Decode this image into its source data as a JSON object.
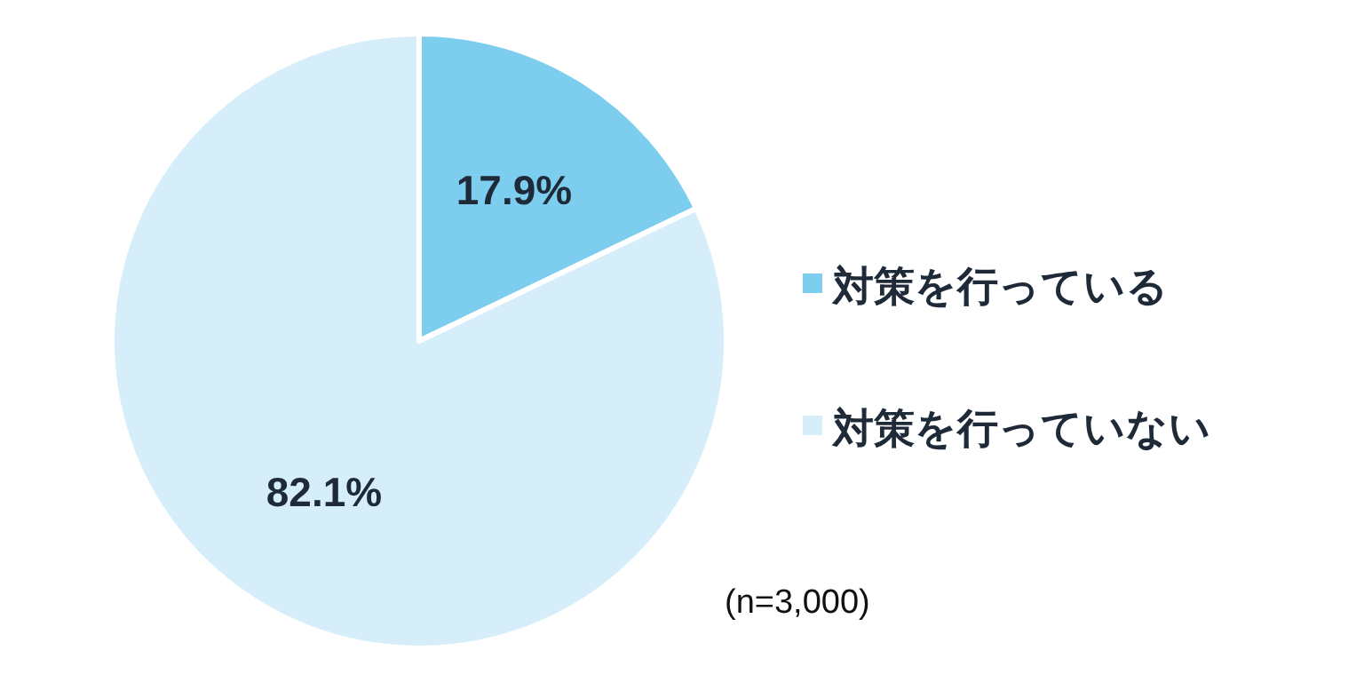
{
  "chart_data": {
    "type": "pie",
    "categories": [
      "対策を行っている",
      "対策を行っていない"
    ],
    "values": [
      17.9,
      82.1
    ],
    "colors": [
      "#7dcdef",
      "#d5eef9"
    ],
    "value_labels": [
      "17.9%",
      "82.1%"
    ],
    "legend": "right",
    "annotations": [
      "(n=3,000)"
    ]
  }
}
